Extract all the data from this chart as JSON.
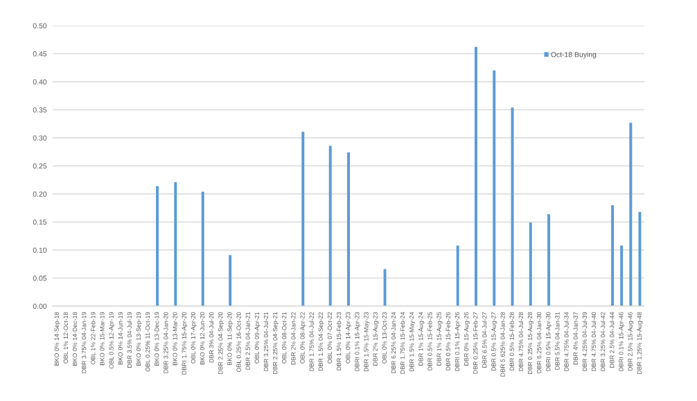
{
  "chart_data": {
    "type": "bar",
    "categories": [
      "BKO 0% 14-Sep-18",
      "OBL 1% 12-Oct-18",
      "BKO 0% 14-Dec-18",
      "DBR 3.75% 04-Jan-19",
      "OBL 1% 22-Feb-19",
      "BKO 0% 15-Mar-19",
      "OBL 0.5% 12-Apr-19",
      "BKO 0% 14-Jun-19",
      "DBR 3.5% 04-Jul-19",
      "BKO 0% 13-Sep-19",
      "OBL 0.25% 11-Oct-19",
      "BKO 0% 13-Dec-19",
      "DBR 3.25% 04-Jan-20",
      "BKO 0% 13-Mar-20",
      "DBRI 1.75% 15-Apr-20",
      "OBL 0% 17-Apr-20",
      "BKO 0% 12-Jun-20",
      "DBR 3% 04-Jul-20",
      "DBR 2.25% 04-Sep-20",
      "BKO 0% 11-Sep-20",
      "OBL 0.25% 16-Oct-20",
      "DBR 2.5% 04-Jan-21",
      "OBL 0% 09-Apr-21",
      "DBR 3.25% 04-Jul-21",
      "DBR 2.25% 04-Sep-21",
      "OBL 0% 08-Oct-21",
      "DBR 2% 04-Jan-22",
      "OBL 0% 08-Apr-22",
      "DBR 1.75% 04-Jul-22",
      "DBR 1.5% 04-Sep-22",
      "OBL 0% 07-Oct-22",
      "DBR 1.5% 15-Feb-23",
      "OBL 0% 14-Apr-23",
      "DBRI 0.1% 15-Apr-23",
      "DBR 1.5% 15-May-23",
      "DBR 2% 15-Aug-23",
      "OBL 0% 13-Oct-23",
      "DBR 6.25% 04-Jan-24",
      "DBR 1.75% 15-Feb-24",
      "DBR 1.5% 15-May-24",
      "DBR 1% 15-Aug-24",
      "DBR 0.5% 15-Feb-25",
      "DBR 1% 15-Aug-25",
      "DBR 0.5% 15-Feb-26",
      "DBRI 0.1% 15-Apr-26",
      "DBR 0% 15-Aug-26",
      "DBR 0.25% 15-Feb-27",
      "DBR 6.5% 04-Jul-27",
      "DBR 0.5% 15-Aug-27",
      "DBR 5.625% 04-Jan-28",
      "DBR 0.5% 15-Feb-28",
      "DBR 4.75% 04-Jul-28",
      "DBR 0.25% 15-Aug-28",
      "DBR 6.25% 04-Jan-30",
      "DBRI 0.5% 15-Apr-30",
      "DBR 5.5% 04-Jan-31",
      "DBR 4.75% 04-Jul-34",
      "DBR 4% 04-Jan-37",
      "DBR 4.25% 04-Jul-39",
      "DBR 4.75% 04-Jul-40",
      "DBR 3.25% 04-Jul-42",
      "DBR 2.5% 04-Jul-44",
      "DBRI 0.1% 15-Apr-46",
      "DBR 2.5% 15-Aug-46",
      "DBR 1.25% 15-Aug-48"
    ],
    "series": [
      {
        "name": "Oct-18 Buying",
        "color": "#5b9bd5",
        "values": [
          null,
          null,
          null,
          null,
          null,
          null,
          null,
          null,
          null,
          null,
          null,
          0.214,
          null,
          0.221,
          null,
          null,
          0.204,
          null,
          null,
          0.091,
          null,
          null,
          null,
          null,
          null,
          null,
          null,
          0.311,
          null,
          null,
          0.286,
          null,
          0.274,
          null,
          null,
          null,
          0.066,
          null,
          null,
          null,
          null,
          null,
          null,
          null,
          0.108,
          null,
          0.462,
          null,
          0.42,
          null,
          0.354,
          null,
          0.149,
          null,
          0.164,
          null,
          null,
          null,
          null,
          null,
          null,
          0.18,
          0.108,
          0.327,
          0.168
        ]
      }
    ],
    "ylim": [
      0,
      0.5
    ],
    "yticks": [
      {
        "value": 0,
        "label": "0.00"
      },
      {
        "value": 0.05,
        "label": "0.05"
      },
      {
        "value": 0.1,
        "label": "0.10"
      },
      {
        "value": 0.15,
        "label": "0.15"
      },
      {
        "value": 0.2,
        "label": "0.20"
      },
      {
        "value": 0.25,
        "label": "0.25"
      },
      {
        "value": 0.3,
        "label": "0.30"
      },
      {
        "value": 0.35,
        "label": "0.35"
      },
      {
        "value": 0.4,
        "label": "0.40"
      },
      {
        "value": 0.45,
        "label": "0.45"
      },
      {
        "value": 0.5,
        "label": "0.50"
      }
    ],
    "grid": "y",
    "legend": "top right"
  }
}
